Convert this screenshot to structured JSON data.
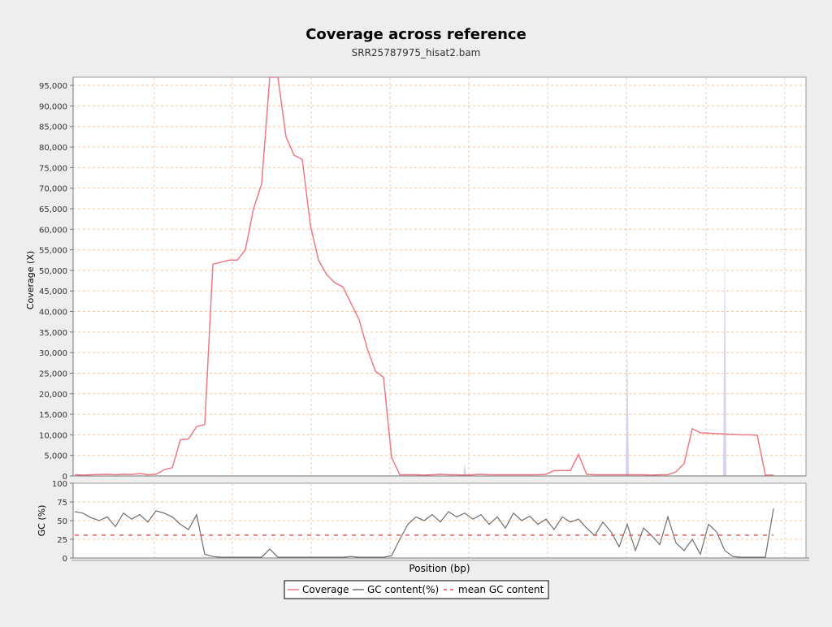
{
  "chart_data": [
    {
      "type": "line",
      "title": "Coverage across reference",
      "subtitle": "SRR25787975_hisat2.bam",
      "ylabel": "Coverage (X)",
      "ylim": [
        0,
        97000
      ],
      "yticks": [
        0,
        5000,
        10000,
        15000,
        20000,
        25000,
        30000,
        35000,
        40000,
        45000,
        50000,
        55000,
        60000,
        65000,
        70000,
        75000,
        80000,
        85000,
        90000,
        95000
      ],
      "ytick_labels": [
        "0",
        "5,000",
        "10,000",
        "15,000",
        "20,000",
        "25,000",
        "30,000",
        "35,000",
        "40,000",
        "45,000",
        "50,000",
        "55,000",
        "60,000",
        "65,000",
        "70,000",
        "75,000",
        "80,000",
        "85,000",
        "90,000",
        "95,000"
      ],
      "grid": true,
      "series": [
        {
          "name": "Coverage",
          "color": "#ec7a86",
          "x": [
            0,
            1,
            2,
            3,
            4,
            5,
            6,
            7,
            8,
            9,
            10,
            11,
            12,
            13,
            14,
            15,
            16,
            17,
            18,
            19,
            20,
            21,
            22,
            23,
            24,
            25,
            26,
            27,
            28,
            29,
            30,
            31,
            32,
            33,
            34,
            35,
            36,
            37,
            38,
            39,
            40,
            41,
            42,
            43,
            44,
            45,
            46,
            47,
            48,
            49,
            50,
            51,
            52,
            53,
            54,
            55,
            56,
            57,
            58,
            59,
            60,
            61,
            62,
            63,
            64,
            65,
            66,
            67,
            68,
            69,
            70,
            71,
            72,
            73,
            74,
            75,
            76,
            77,
            78,
            79,
            80,
            81,
            82,
            83,
            84,
            85,
            86
          ],
          "y": [
            300,
            200,
            300,
            350,
            400,
            300,
            400,
            350,
            600,
            300,
            400,
            1500,
            2000,
            8800,
            9000,
            12000,
            12500,
            51500,
            52000,
            52500,
            52500,
            55000,
            65000,
            71000,
            97000,
            97000,
            82500,
            78000,
            77000,
            61000,
            52500,
            49000,
            47000,
            46000,
            42000,
            38000,
            31000,
            25500,
            24000,
            4500,
            300,
            300,
            300,
            200,
            300,
            400,
            300,
            300,
            200,
            300,
            400,
            300,
            300,
            300,
            300,
            300,
            300,
            300,
            400,
            1300,
            1300,
            1300,
            5200,
            400,
            300,
            300,
            300,
            300,
            300,
            300,
            300,
            200,
            300,
            300,
            1000,
            3000,
            11500,
            10500,
            10400,
            10300,
            10200,
            10100,
            10000,
            10000,
            9900,
            200,
            200
          ]
        },
        {
          "name": "",
          "color": "#c8c8f0",
          "x": [
            48,
            68,
            80
          ],
          "y": [
            3000,
            33000,
            58000
          ]
        }
      ]
    },
    {
      "type": "line",
      "xlabel": "Position (bp)",
      "ylabel": "GC (%)",
      "ylim": [
        0,
        100
      ],
      "yticks": [
        0,
        25,
        50,
        75,
        100
      ],
      "ytick_labels": [
        "0",
        "25",
        "50",
        "75",
        "100"
      ],
      "grid": true,
      "series": [
        {
          "name": "GC content(%)",
          "color": "#6e6e6e",
          "x": [
            0,
            1,
            2,
            3,
            4,
            5,
            6,
            7,
            8,
            9,
            10,
            11,
            12,
            13,
            14,
            15,
            16,
            17,
            18,
            19,
            20,
            21,
            22,
            23,
            24,
            25,
            26,
            27,
            28,
            29,
            30,
            31,
            32,
            33,
            34,
            35,
            36,
            37,
            38,
            39,
            40,
            41,
            42,
            43,
            44,
            45,
            46,
            47,
            48,
            49,
            50,
            51,
            52,
            53,
            54,
            55,
            56,
            57,
            58,
            59,
            60,
            61,
            62,
            63,
            64,
            65,
            66,
            67,
            68,
            69,
            70,
            71,
            72,
            73,
            74,
            75,
            76,
            77,
            78,
            79,
            80,
            81,
            82,
            83,
            84,
            85,
            86
          ],
          "y": [
            62,
            60,
            54,
            50,
            55,
            42,
            60,
            52,
            58,
            48,
            63,
            60,
            55,
            45,
            38,
            58,
            5,
            2,
            1,
            1,
            1,
            1,
            1,
            1,
            12,
            1,
            1,
            1,
            1,
            1,
            1,
            1,
            1,
            1,
            2,
            1,
            1,
            1,
            1,
            3,
            25,
            45,
            55,
            50,
            58,
            48,
            62,
            55,
            60,
            52,
            58,
            45,
            55,
            40,
            60,
            50,
            56,
            45,
            52,
            38,
            55,
            48,
            52,
            40,
            30,
            48,
            35,
            15,
            45,
            10,
            40,
            30,
            18,
            55,
            20,
            10,
            25,
            5,
            45,
            35,
            10,
            2,
            1,
            1,
            1,
            1,
            66
          ]
        },
        {
          "name": "mean GC content",
          "color": "#e05050",
          "x": [
            0,
            86
          ],
          "y": [
            30.5,
            30.5
          ]
        }
      ]
    }
  ],
  "legend": {
    "items": [
      {
        "label": "Coverage"
      },
      {
        "label": "GC content(%)"
      },
      {
        "label": "mean GC content"
      }
    ]
  }
}
